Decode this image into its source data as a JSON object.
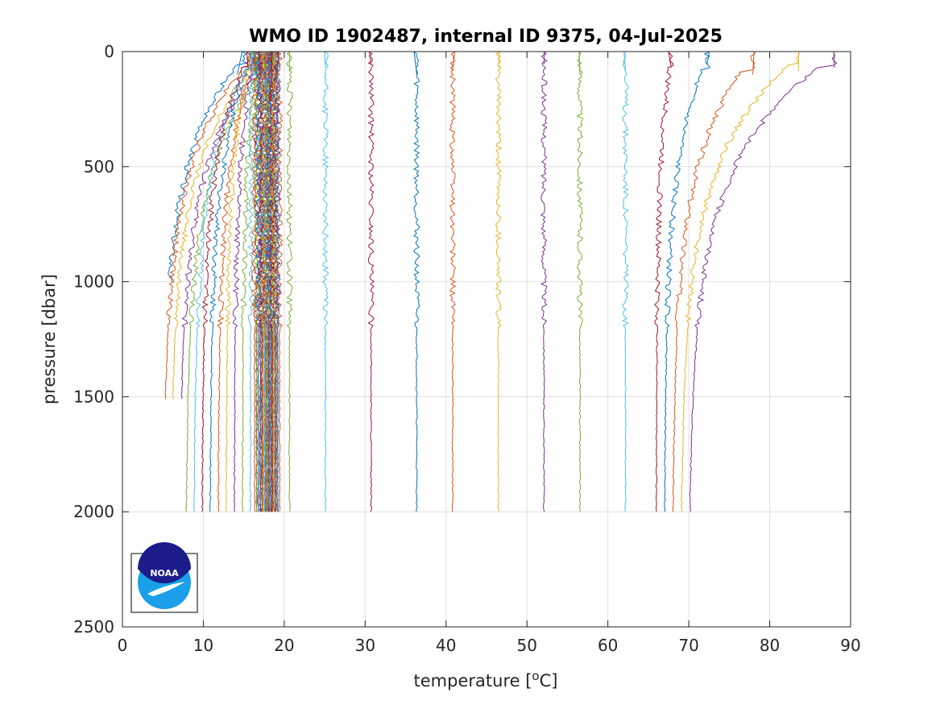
{
  "chart_data": {
    "type": "line",
    "title": "WMO ID 1902487, internal ID 9375, 04-Jul-2025",
    "xlabel_text": "temperature [",
    "xlabel_sup": "o",
    "xlabel_end": "C]",
    "ylabel": "pressure [dbar]",
    "xlim": [
      0,
      90
    ],
    "ylim": [
      0,
      2500
    ],
    "y_reversed": true,
    "grid": true,
    "x_ticks": [
      0,
      10,
      20,
      30,
      40,
      50,
      60,
      70,
      80,
      90
    ],
    "y_ticks": [
      0,
      500,
      1000,
      1500,
      2000,
      2500
    ],
    "series_count": 67,
    "offset_per_profile": 1,
    "profiles": [
      {
        "first_temp": 14.2,
        "surface_temp": 15.0,
        "deep_temp": 4.8,
        "max_pressure": 1000
      },
      {
        "first_temp": 15.5,
        "surface_temp": 16.2,
        "deep_temp": 5.0,
        "max_pressure": 1510
      },
      {
        "first_temp": 16.5,
        "surface_temp": 17.2,
        "deep_temp": 5.9,
        "max_pressure": 1510
      },
      {
        "first_temp": 17.3,
        "surface_temp": 18.0,
        "deep_temp": 7.0,
        "max_pressure": 1510
      },
      {
        "first_temp": 18.2,
        "surface_temp": 18.8,
        "deep_temp": 7.8,
        "max_pressure": 2000
      },
      {
        "first_temp": 88.0,
        "surface_temp": 88.0,
        "deep_temp": 70.0,
        "max_pressure": 2000
      }
    ],
    "colors": [
      "#0072BD",
      "#D95319",
      "#EDB120",
      "#7E2F8E",
      "#77AC30",
      "#4DBEEE",
      "#A2142F"
    ]
  },
  "logo": {
    "name": "NOAA",
    "text": "NOAA",
    "colors": {
      "dark": "#1c1c8a",
      "light": "#1a9fe8"
    }
  }
}
